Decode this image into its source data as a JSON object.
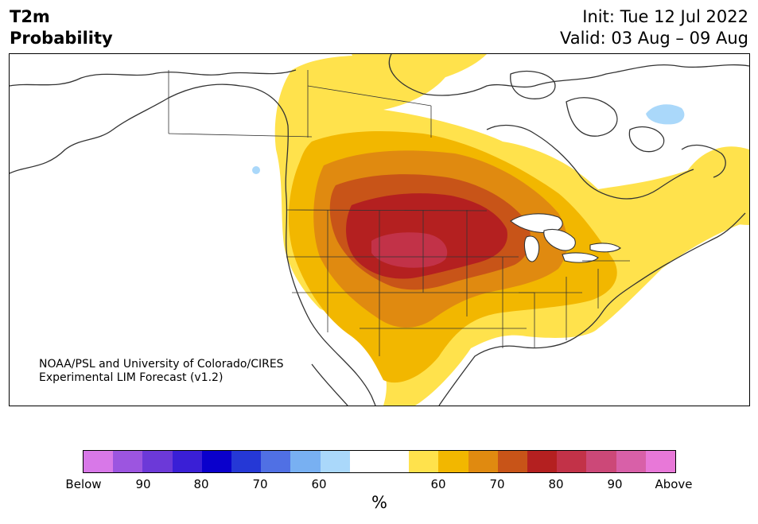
{
  "header": {
    "variable": "T2m",
    "product": "Probability",
    "init": "Init: Tue 12 Jul 2022",
    "valid": "Valid: 03 Aug – 09 Aug"
  },
  "credit": {
    "line1": "NOAA/PSL and University of Colorado/CIRES",
    "line2": "Experimental LIM Forecast (v1.2)"
  },
  "colorbar": {
    "colors": [
      "#d878e8",
      "#9c55e0",
      "#6c39d8",
      "#3a1fd6",
      "#0a00cc",
      "#2538d6",
      "#5070e4",
      "#78b0f2",
      "#aad8fa",
      "#ffffff",
      "#ffffff",
      "#ffe24c",
      "#f2b700",
      "#e08a10",
      "#c85418",
      "#b42020",
      "#c23248",
      "#cc4878",
      "#d860a8",
      "#e878d8"
    ],
    "ticks": [
      "Below",
      "90",
      "80",
      "70",
      "60",
      "60",
      "70",
      "80",
      "90",
      "Above"
    ],
    "unit": "%"
  },
  "legend_colors": {
    "below_light": "#aad8fa",
    "above_60": "#ffe24c",
    "above_70": "#e08a10",
    "above_80": "#b42020",
    "above_90": "#cc4878"
  }
}
